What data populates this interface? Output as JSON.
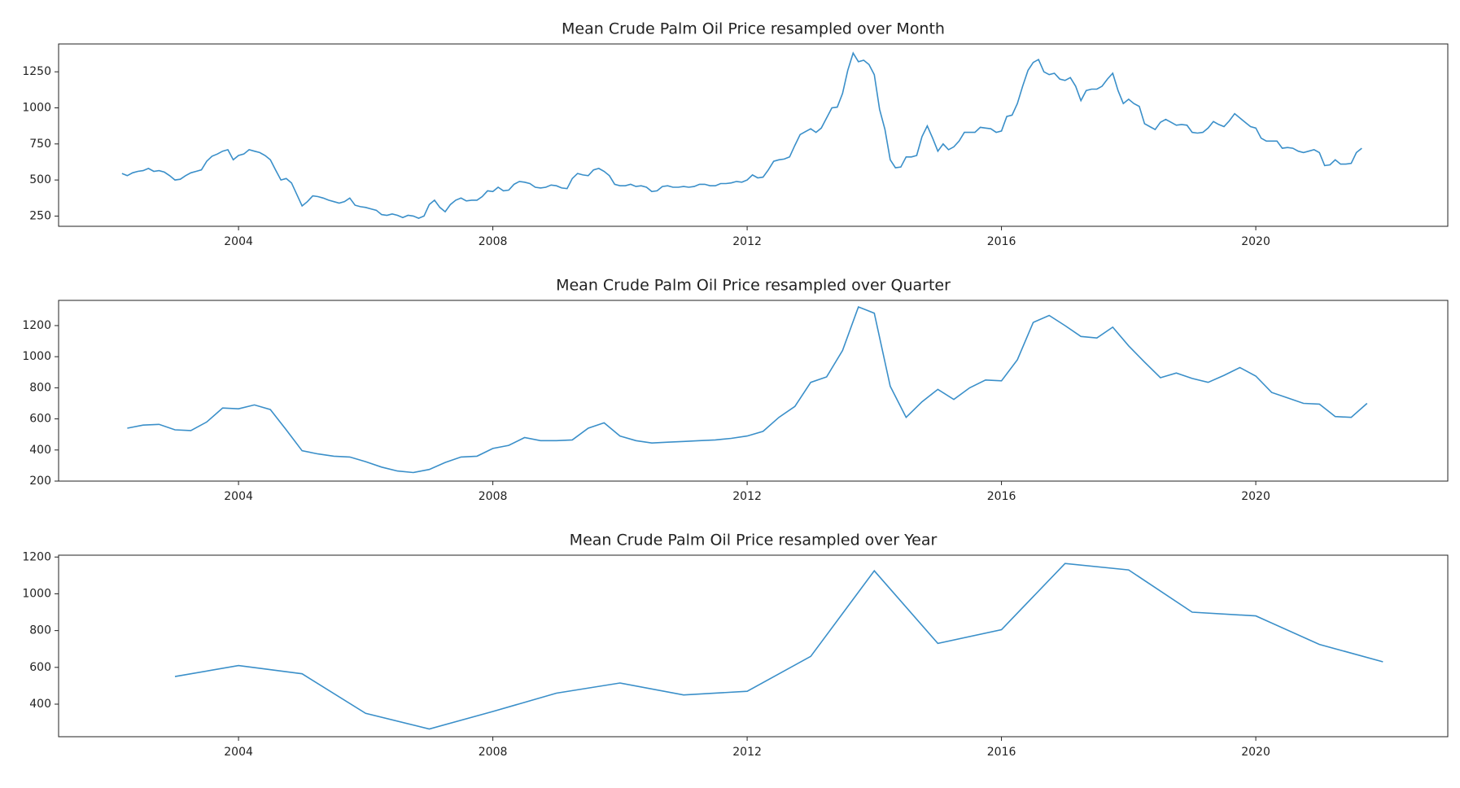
{
  "chart_data": [
    {
      "type": "line",
      "title": "Mean Crude Palm Oil Price resampled over Month",
      "color": "#3a8fc9",
      "xlim": [
        2001.17,
        2023.02
      ],
      "ylim": [
        179,
        1443
      ],
      "xticks": [
        2004,
        2008,
        2012,
        2016,
        2020
      ],
      "yticks": [
        250,
        500,
        750,
        1000,
        1250
      ],
      "x": [
        2002.167,
        2002.25,
        2002.333,
        2002.417,
        2002.5,
        2002.583,
        2002.667,
        2002.75,
        2002.833,
        2002.917,
        2003,
        2003.083,
        2003.167,
        2003.25,
        2003.333,
        2003.417,
        2003.5,
        2003.583,
        2003.667,
        2003.75,
        2003.833,
        2003.917,
        2004,
        2004.083,
        2004.167,
        2004.25,
        2004.333,
        2004.417,
        2004.5,
        2004.583,
        2004.667,
        2004.75,
        2004.833,
        2004.917,
        2005,
        2005.083,
        2005.167,
        2005.25,
        2005.333,
        2005.417,
        2005.5,
        2005.583,
        2005.667,
        2005.75,
        2005.833,
        2005.917,
        2006,
        2006.083,
        2006.167,
        2006.25,
        2006.333,
        2006.417,
        2006.5,
        2006.583,
        2006.667,
        2006.75,
        2006.833,
        2006.917,
        2007,
        2007.083,
        2007.167,
        2007.25,
        2007.333,
        2007.417,
        2007.5,
        2007.583,
        2007.667,
        2007.75,
        2007.833,
        2007.917,
        2008,
        2008.083,
        2008.167,
        2008.25,
        2008.333,
        2008.417,
        2008.5,
        2008.583,
        2008.667,
        2008.75,
        2008.833,
        2008.917,
        2009,
        2009.083,
        2009.167,
        2009.25,
        2009.333,
        2009.417,
        2009.5,
        2009.583,
        2009.667,
        2009.75,
        2009.833,
        2009.917,
        2010,
        2010.083,
        2010.167,
        2010.25,
        2010.333,
        2010.417,
        2010.5,
        2010.583,
        2010.667,
        2010.75,
        2010.833,
        2010.917,
        2011,
        2011.083,
        2011.167,
        2011.25,
        2011.333,
        2011.417,
        2011.5,
        2011.583,
        2011.667,
        2011.75,
        2011.833,
        2011.917,
        2012,
        2012.083,
        2012.167,
        2012.25,
        2012.333,
        2012.417,
        2012.5,
        2012.583,
        2012.667,
        2012.75,
        2012.833,
        2012.917,
        2013,
        2013.083,
        2013.167,
        2013.25,
        2013.333,
        2013.417,
        2013.5,
        2013.583,
        2013.667,
        2013.75,
        2013.833,
        2013.917,
        2014,
        2014.083,
        2014.167,
        2014.25,
        2014.333,
        2014.417,
        2014.5,
        2014.583,
        2014.667,
        2014.75,
        2014.833,
        2014.917,
        2015,
        2015.083,
        2015.167,
        2015.25,
        2015.333,
        2015.417,
        2015.5,
        2015.583,
        2015.667,
        2015.75,
        2015.833,
        2015.917,
        2016,
        2016.083,
        2016.167,
        2016.25,
        2016.333,
        2016.417,
        2016.5,
        2016.583,
        2016.667,
        2016.75,
        2016.833,
        2016.917,
        2017,
        2017.083,
        2017.167,
        2017.25,
        2017.333,
        2017.417,
        2017.5,
        2017.583,
        2017.667,
        2017.75,
        2017.833,
        2017.917,
        2018,
        2018.083,
        2018.167,
        2018.25,
        2018.333,
        2018.417,
        2018.5,
        2018.583,
        2018.667,
        2018.75,
        2018.833,
        2018.917,
        2019,
        2019.083,
        2019.167,
        2019.25,
        2019.333,
        2019.417,
        2019.5,
        2019.583,
        2019.667,
        2019.75,
        2019.833,
        2019.917,
        2020,
        2020.083,
        2020.167,
        2020.25,
        2020.333,
        2020.417,
        2020.5,
        2020.583,
        2020.667,
        2020.75,
        2020.833,
        2020.917,
        2021,
        2021.083,
        2021.167,
        2021.25,
        2021.333,
        2021.417,
        2021.5,
        2021.583,
        2021.667
      ],
      "values": [
        545,
        530,
        550,
        560,
        565,
        580,
        560,
        565,
        555,
        530,
        500,
        505,
        530,
        550,
        560,
        570,
        630,
        665,
        680,
        700,
        710,
        640,
        670,
        680,
        710,
        700,
        690,
        670,
        640,
        570,
        500,
        510,
        480,
        400,
        320,
        350,
        390,
        385,
        375,
        360,
        350,
        340,
        350,
        375,
        325,
        315,
        310,
        300,
        290,
        260,
        255,
        265,
        255,
        240,
        255,
        250,
        235,
        250,
        330,
        360,
        310,
        280,
        330,
        360,
        375,
        355,
        360,
        360,
        385,
        425,
        420,
        450,
        425,
        430,
        470,
        490,
        485,
        475,
        450,
        445,
        450,
        465,
        460,
        445,
        440,
        510,
        545,
        535,
        530,
        570,
        580,
        560,
        530,
        470,
        460,
        460,
        470,
        455,
        460,
        450,
        420,
        425,
        455,
        460,
        450,
        450,
        455,
        450,
        455,
        470,
        470,
        460,
        460,
        475,
        475,
        480,
        490,
        485,
        500,
        535,
        515,
        520,
        570,
        630,
        640,
        645,
        660,
        740,
        815,
        835,
        855,
        830,
        860,
        930,
        1000,
        1005,
        1100,
        1260,
        1380,
        1320,
        1330,
        1300,
        1230,
        990,
        850,
        640,
        585,
        590,
        660,
        660,
        670,
        800,
        875,
        790,
        700,
        750,
        710,
        730,
        770,
        830,
        830,
        830,
        865,
        860,
        855,
        830,
        840,
        940,
        950,
        1030,
        1150,
        1260,
        1315,
        1335,
        1250,
        1230,
        1240,
        1200,
        1190,
        1210,
        1150,
        1050,
        1120,
        1130,
        1130,
        1150,
        1200,
        1240,
        1120,
        1030,
        1060,
        1030,
        1010,
        890,
        870,
        850,
        900,
        920,
        900,
        880,
        885,
        880,
        830,
        825,
        830,
        860,
        905,
        885,
        870,
        910,
        960,
        930,
        900,
        870,
        860,
        790,
        770,
        770,
        770,
        720,
        725,
        720,
        700,
        690,
        700,
        710,
        690,
        600,
        605,
        640,
        610,
        610,
        615,
        690,
        720
      ]
    },
    {
      "type": "line",
      "title": "Mean Crude Palm Oil Price resampled over Quarter",
      "color": "#3a8fc9",
      "xlim": [
        2001.17,
        2023.02
      ],
      "ylim": [
        200,
        1362
      ],
      "xticks": [
        2004,
        2008,
        2012,
        2016,
        2020
      ],
      "yticks": [
        200,
        400,
        600,
        800,
        1000,
        1200
      ],
      "x": [
        2002.25,
        2002.5,
        2002.75,
        2003,
        2003.25,
        2003.5,
        2003.75,
        2004,
        2004.25,
        2004.5,
        2004.75,
        2005,
        2005.25,
        2005.5,
        2005.75,
        2006,
        2006.25,
        2006.5,
        2006.75,
        2007,
        2007.25,
        2007.5,
        2007.75,
        2008,
        2008.25,
        2008.5,
        2008.75,
        2009,
        2009.25,
        2009.5,
        2009.75,
        2010,
        2010.25,
        2010.5,
        2010.75,
        2011,
        2011.25,
        2011.5,
        2011.75,
        2012,
        2012.25,
        2012.5,
        2012.75,
        2013,
        2013.25,
        2013.5,
        2013.75,
        2014,
        2014.25,
        2014.5,
        2014.75,
        2015,
        2015.25,
        2015.5,
        2015.75,
        2016,
        2016.25,
        2016.5,
        2016.75,
        2017,
        2017.25,
        2017.5,
        2017.75,
        2018,
        2018.25,
        2018.5,
        2018.75,
        2019,
        2019.25,
        2019.5,
        2019.75,
        2020,
        2020.25,
        2020.5,
        2020.75,
        2021,
        2021.25,
        2021.5,
        2021.75
      ],
      "values": [
        540,
        560,
        565,
        530,
        525,
        580,
        670,
        665,
        690,
        660,
        530,
        395,
        375,
        360,
        355,
        325,
        290,
        265,
        255,
        275,
        320,
        355,
        360,
        410,
        430,
        480,
        460,
        460,
        465,
        540,
        575,
        490,
        460,
        445,
        450,
        455,
        460,
        465,
        475,
        490,
        520,
        610,
        680,
        835,
        870,
        1040,
        1320,
        1280,
        810,
        610,
        710,
        790,
        725,
        800,
        850,
        845,
        980,
        1220,
        1265,
        1200,
        1130,
        1120,
        1190,
        1070,
        965,
        865,
        895,
        860,
        835,
        880,
        930,
        875,
        770,
        735,
        700,
        695,
        615,
        610,
        700
      ]
    },
    {
      "type": "line",
      "title": "Mean Crude Palm Oil Price resampled over Year",
      "color": "#3a8fc9",
      "xlim": [
        2001.17,
        2023.02
      ],
      "ylim": [
        223,
        1210
      ],
      "xticks": [
        2004,
        2008,
        2012,
        2016,
        2020
      ],
      "yticks": [
        400,
        600,
        800,
        1000,
        1200
      ],
      "x": [
        2003,
        2004,
        2005,
        2006,
        2007,
        2008,
        2009,
        2010,
        2011,
        2012,
        2013,
        2014,
        2015,
        2016,
        2017,
        2018,
        2019,
        2020,
        2021,
        2022
      ],
      "values": [
        550,
        610,
        565,
        350,
        265,
        360,
        460,
        515,
        450,
        470,
        660,
        1125,
        730,
        805,
        1165,
        1130,
        900,
        880,
        725,
        630
      ]
    }
  ]
}
